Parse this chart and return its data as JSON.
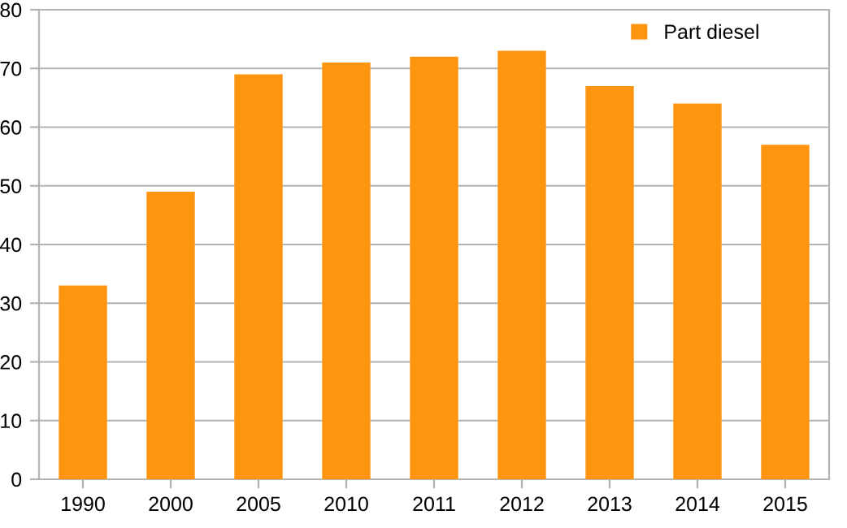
{
  "chart_data": {
    "type": "bar",
    "categories": [
      "1990",
      "2000",
      "2005",
      "2010",
      "2011",
      "2012",
      "2013",
      "2014",
      "2015"
    ],
    "series": [
      {
        "name": "Part diesel",
        "color": "#ff950e",
        "values": [
          33,
          49,
          69,
          71,
          72,
          73,
          67,
          64,
          57
        ]
      }
    ],
    "ylim": [
      0,
      80
    ],
    "yticks": [
      0,
      10,
      20,
      30,
      40,
      50,
      60,
      70,
      80
    ],
    "grid": "y",
    "legend": "top right"
  }
}
